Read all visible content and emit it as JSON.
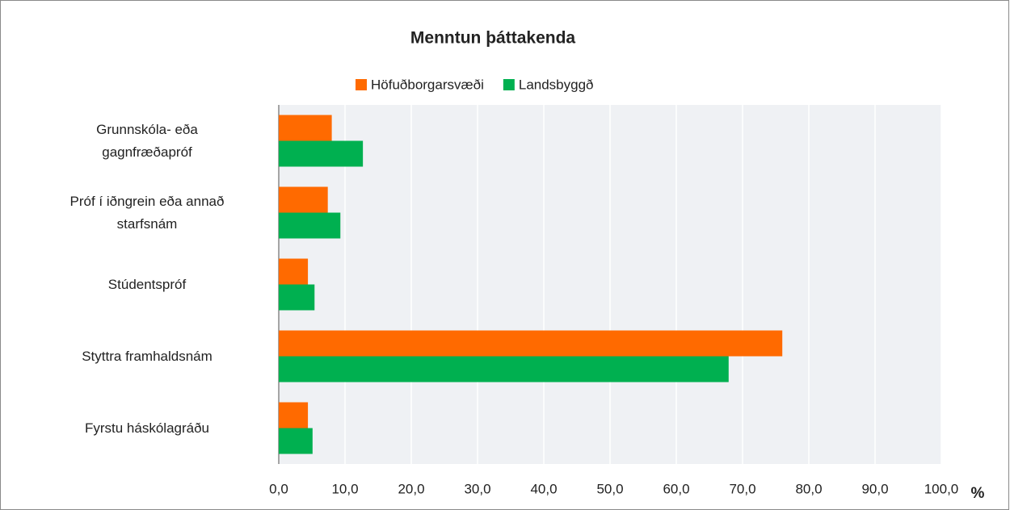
{
  "chart_data": {
    "type": "hbar",
    "title": "Menntun þáttakenda",
    "xlabel": "%",
    "categories": [
      "Grunnskóla- eða\ngagnfræðapróf",
      "Próf í iðngrein eða annað\nstarfsnám",
      "Stúdentspróf",
      "Styttra framhaldsnám",
      "Fyrstu háskólagráðu"
    ],
    "series": [
      {
        "name": "Höfuðborgarsvæði",
        "color": "#ff6a00",
        "values": [
          8.0,
          7.4,
          4.4,
          76.0,
          4.4
        ]
      },
      {
        "name": "Landsbyggð",
        "color": "#00b050",
        "values": [
          12.7,
          9.3,
          5.4,
          67.9,
          5.1
        ]
      }
    ],
    "xlim": [
      0,
      100
    ],
    "xticks": [
      {
        "value": 0,
        "label": "0,0"
      },
      {
        "value": 10,
        "label": "10,0"
      },
      {
        "value": 20,
        "label": "20,0"
      },
      {
        "value": 30,
        "label": "30,0"
      },
      {
        "value": 40,
        "label": "40,0"
      },
      {
        "value": 50,
        "label": "50,0"
      },
      {
        "value": 60,
        "label": "60,0"
      },
      {
        "value": 70,
        "label": "70,0"
      },
      {
        "value": 80,
        "label": "80,0"
      },
      {
        "value": 90,
        "label": "90,0"
      },
      {
        "value": 100,
        "label": "100,0"
      }
    ],
    "grid": true,
    "legend": "top"
  }
}
